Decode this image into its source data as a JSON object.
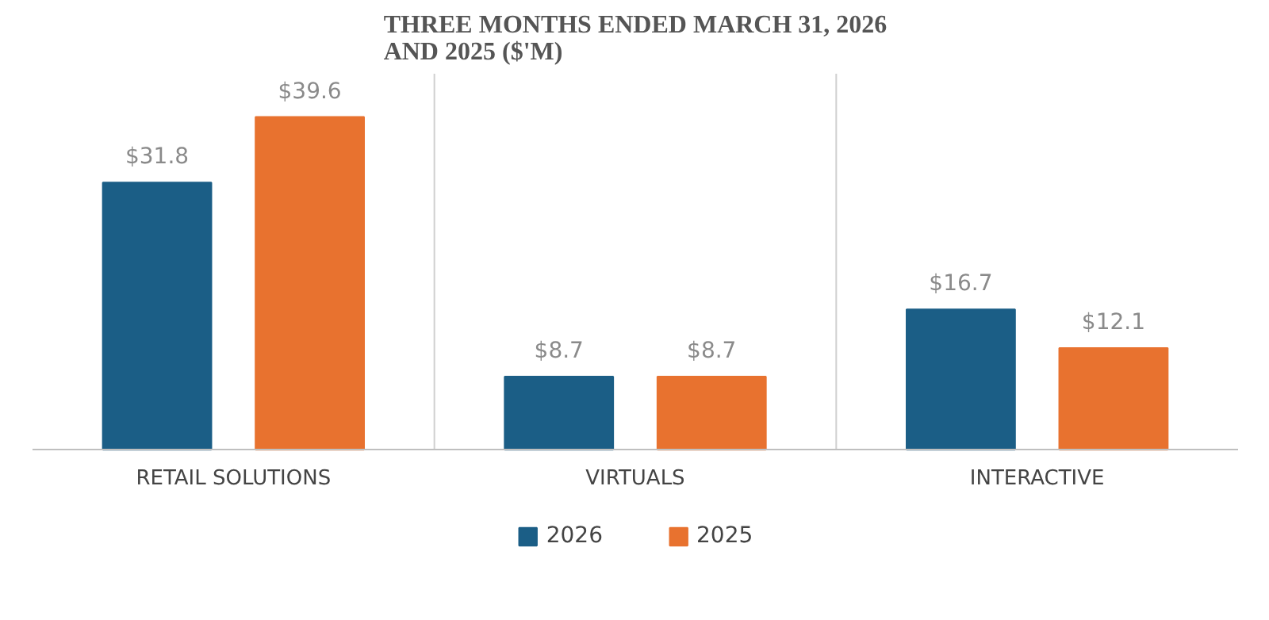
{
  "chart_data": {
    "type": "bar",
    "title": "THREE MONTHS ENDED MARCH 31, 2026\nAND 2025 ($'M)",
    "categories": [
      "RETAIL SOLUTIONS",
      "VIRTUALS",
      "INTERACTIVE"
    ],
    "series": [
      {
        "name": "2026",
        "color": "#1b5e86",
        "values": [
          31.8,
          8.7,
          16.7
        ],
        "value_labels": [
          "$31.8",
          "$8.7",
          "$16.7"
        ]
      },
      {
        "name": "2025",
        "color": "#e8722f",
        "values": [
          39.6,
          8.7,
          12.1
        ],
        "value_labels": [
          "$39.6",
          "$8.7",
          "$12.1"
        ]
      }
    ],
    "grid": "x",
    "legend": "bottom"
  }
}
